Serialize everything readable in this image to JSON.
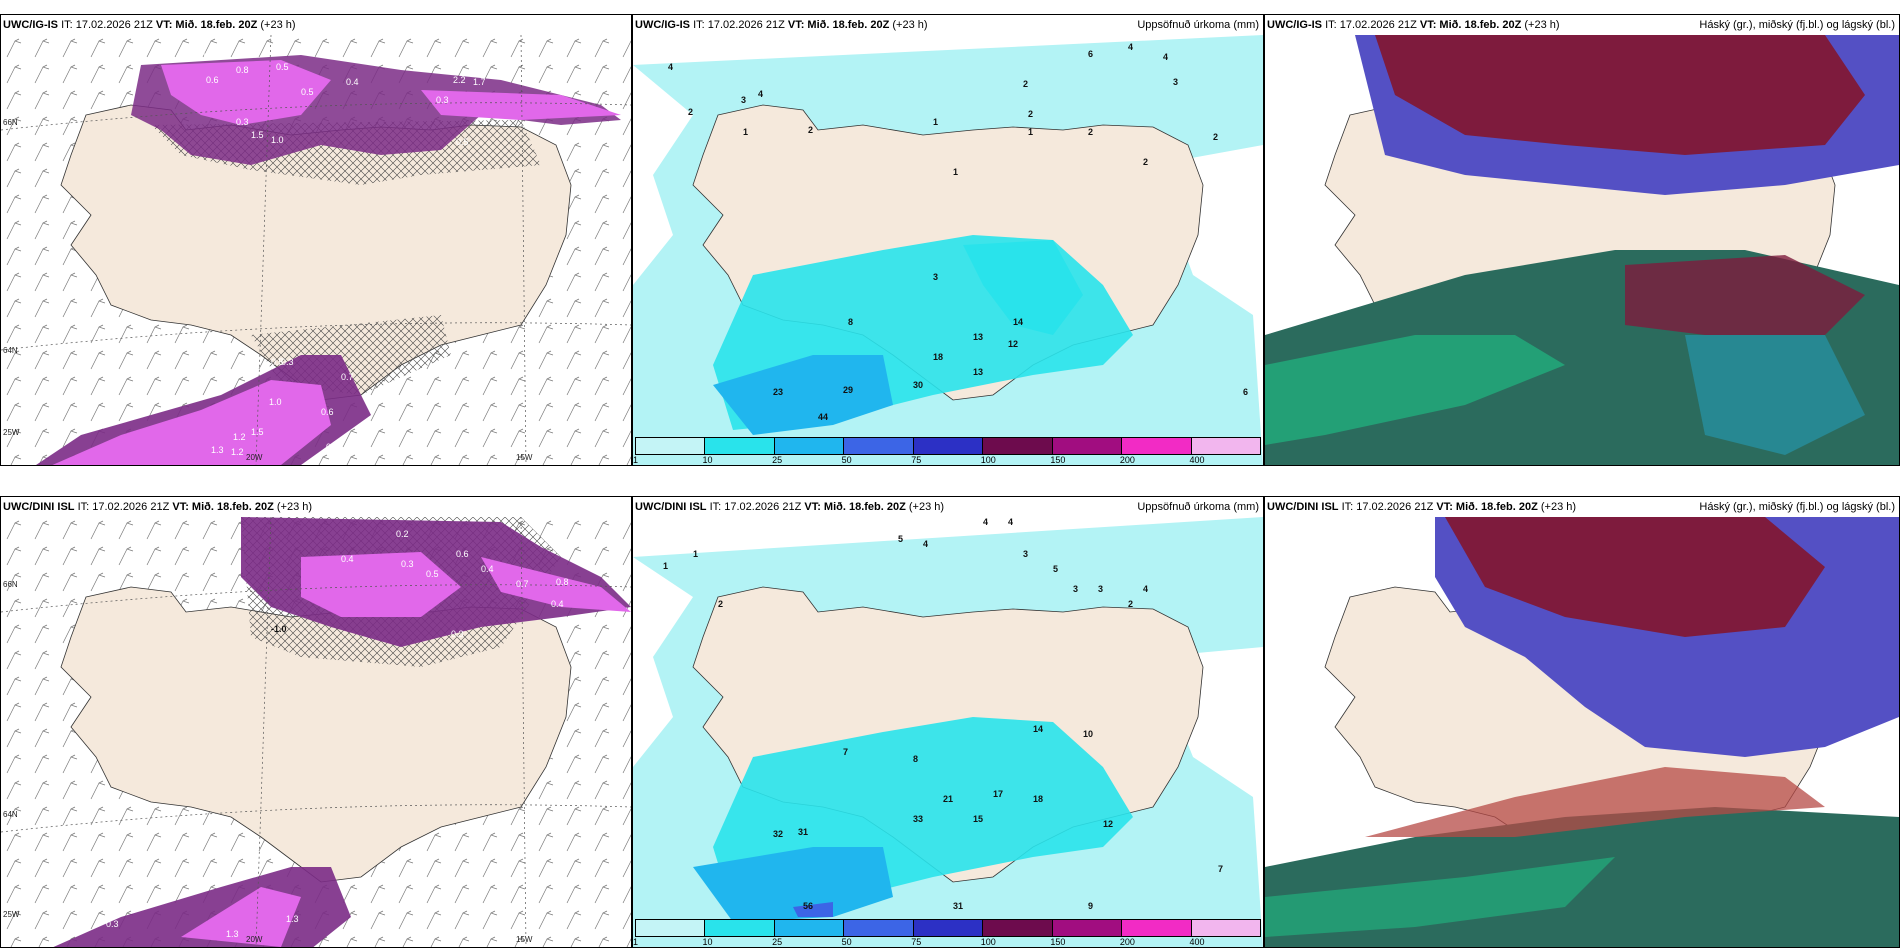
{
  "top": {
    "precip_label": {
      "model": "UWC/IG-IS",
      "it": "IT: 17.02.2026 21Z",
      "vt": "VT: Mið. 18.feb. 20Z",
      "lead": "(+23 h)"
    },
    "accum_label": {
      "model": "UWC/IG-IS",
      "it": "IT: 17.02.2026 21Z",
      "vt": "VT: Mið. 18.feb. 20Z",
      "lead": "(+23 h)",
      "right": "Uppsöfnuð úrkoma (mm)"
    },
    "cloud_label": {
      "model": "UWC/IG-IS",
      "it": "IT: 17.02.2026 21Z",
      "vt": "VT: Mið. 18.feb. 20Z",
      "lead": "(+23 h)",
      "right": "Háský (gr.), miðský (fj.bl.) og lágský (bl.)"
    },
    "precip_values": [
      "0.5",
      "0.6",
      "0.8",
      "0.5",
      "0.5",
      "0.4",
      "2.2",
      "1.7",
      "1.0",
      "0.3",
      "1.5",
      "1.0",
      "0.5",
      "0.3",
      "0.5",
      "0.3",
      "0.7",
      "1.2",
      "1.3",
      "1.0",
      "0.6",
      "1.5",
      "1.2",
      "0.7"
    ],
    "accum_values": [
      "4",
      "2",
      "3",
      "4",
      "1",
      "2",
      "2",
      "1",
      "1",
      "1",
      "2",
      "6",
      "4",
      "4",
      "3",
      "2",
      "2",
      "2",
      "3",
      "8",
      "13",
      "18",
      "13",
      "12",
      "14",
      "30",
      "23",
      "29",
      "44",
      "6"
    ]
  },
  "bottom": {
    "precip_label": {
      "model": "UWC/DINI ISL",
      "it": "IT: 17.02.2026 21Z",
      "vt": "VT: Mið. 18.feb. 20Z",
      "lead": "(+23 h)"
    },
    "accum_label": {
      "model": "UWC/DINI ISL",
      "it": "IT: 17.02.2026 21Z",
      "vt": "VT: Mið. 18.feb. 20Z",
      "lead": "(+23 h)",
      "right": "Uppsöfnuð úrkoma (mm)"
    },
    "cloud_label": {
      "model": "UWC/DINI ISL",
      "it": "IT: 17.02.2026 21Z",
      "vt": "VT: Mið. 18.feb. 20Z",
      "lead": "(+23 h)",
      "right": "Háský (gr.), miðský (fj.bl.) og lágský (bl.)"
    },
    "precip_values": [
      "0.2",
      "0.4",
      "0.6",
      "0.3",
      "0.5",
      "0.4",
      "-1.0",
      "0.7",
      "0.4",
      "0.8",
      "0.3",
      "0.3",
      "1.3",
      "1.3"
    ],
    "accum_values": [
      "4",
      "4",
      "5",
      "1",
      "1",
      "4",
      "2",
      "3",
      "5",
      "3",
      "3",
      "2",
      "4",
      "8",
      "7",
      "14",
      "10",
      "17",
      "18",
      "21",
      "33",
      "15",
      "12",
      "32",
      "31",
      "56",
      "31",
      "9",
      "7"
    ]
  },
  "colorbar": {
    "ticks": [
      "1",
      "10",
      "25",
      "50",
      "75",
      "100",
      "150",
      "200",
      "400"
    ],
    "colors": [
      "#c4f4f6",
      "#29e3eb",
      "#20b6ee",
      "#3c65e6",
      "#2c30c5",
      "#6d0b4d",
      "#a10d80",
      "#f22bc5",
      "#f2b6ee"
    ]
  },
  "axis_labels": {
    "lat66": "66N",
    "lat64": "64N",
    "lon25": "25W",
    "lon20": "20W",
    "lon15": "15W"
  },
  "colors": {
    "land": "#f5e9dc",
    "ocean_cyan": "#b3f3f5",
    "precip_pink": "#e168ea",
    "precip_dark": "#7b2b86",
    "cloud_high_red": "#7e1b3d",
    "cloud_mid_blue": "#5450c4",
    "cloud_low_green": "#2b6b5d"
  }
}
